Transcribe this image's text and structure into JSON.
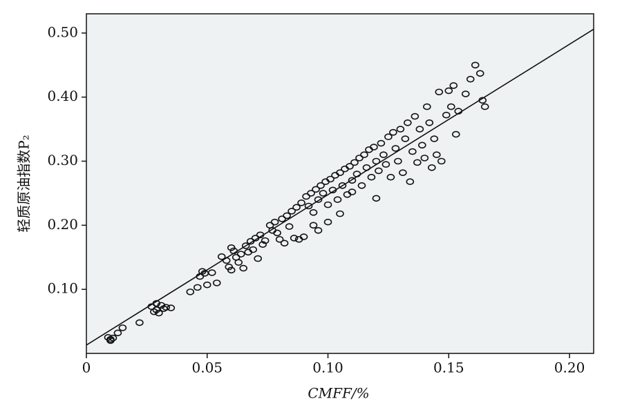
{
  "chart_data": {
    "type": "scatter",
    "x_label": "CMFF/%",
    "y_label": "轻质原油指数P₂",
    "xlim": [
      0,
      0.21
    ],
    "ylim": [
      0,
      0.53
    ],
    "xticks": [
      0,
      0.05,
      {
        "value": 0.1,
        "label": "0.10"
      },
      0.15,
      {
        "value": 0.2,
        "label": "0.20"
      }
    ],
    "yticks": [
      {
        "value": 0.1,
        "label": "0.10"
      },
      {
        "value": 0.2,
        "label": "0.20"
      },
      {
        "value": 0.3,
        "label": "0.30"
      },
      {
        "value": 0.4,
        "label": "0.40"
      },
      {
        "value": 0.5,
        "label": "0.50"
      }
    ],
    "background": "#eef2f2",
    "color": "#111111",
    "fit_line": {
      "x": [
        0,
        0.21
      ],
      "values": [
        0.013,
        0.506
      ]
    },
    "x": [
      0.009,
      0.01,
      0.011,
      0.01,
      0.013,
      0.015,
      0.022,
      0.027,
      0.028,
      0.029,
      0.03,
      0.031,
      0.032,
      0.033,
      0.035,
      0.029,
      0.043,
      0.046,
      0.047,
      0.048,
      0.049,
      0.05,
      0.052,
      0.054,
      0.056,
      0.058,
      0.059,
      0.06,
      0.06,
      0.061,
      0.062,
      0.063,
      0.064,
      0.065,
      0.066,
      0.067,
      0.068,
      0.069,
      0.07,
      0.071,
      0.072,
      0.073,
      0.074,
      0.076,
      0.077,
      0.078,
      0.079,
      0.08,
      0.081,
      0.082,
      0.083,
      0.084,
      0.085,
      0.086,
      0.087,
      0.088,
      0.089,
      0.09,
      0.091,
      0.092,
      0.093,
      0.094,
      0.095,
      0.096,
      0.094,
      0.096,
      0.097,
      0.098,
      0.099,
      0.1,
      0.1,
      0.101,
      0.102,
      0.103,
      0.104,
      0.105,
      0.105,
      0.106,
      0.107,
      0.108,
      0.109,
      0.11,
      0.11,
      0.111,
      0.112,
      0.113,
      0.114,
      0.115,
      0.116,
      0.117,
      0.118,
      0.119,
      0.12,
      0.12,
      0.121,
      0.122,
      0.123,
      0.124,
      0.125,
      0.126,
      0.127,
      0.128,
      0.129,
      0.13,
      0.131,
      0.132,
      0.133,
      0.134,
      0.135,
      0.136,
      0.137,
      0.138,
      0.139,
      0.14,
      0.141,
      0.142,
      0.143,
      0.144,
      0.145,
      0.146,
      0.147,
      0.149,
      0.15,
      0.151,
      0.152,
      0.153,
      0.154,
      0.157,
      0.159,
      0.161,
      0.163,
      0.164,
      0.165
    ],
    "values": [
      0.025,
      0.022,
      0.024,
      0.02,
      0.032,
      0.04,
      0.048,
      0.073,
      0.065,
      0.068,
      0.063,
      0.075,
      0.07,
      0.072,
      0.071,
      0.078,
      0.096,
      0.103,
      0.12,
      0.128,
      0.125,
      0.107,
      0.126,
      0.11,
      0.151,
      0.145,
      0.135,
      0.13,
      0.165,
      0.16,
      0.15,
      0.142,
      0.155,
      0.133,
      0.168,
      0.158,
      0.175,
      0.162,
      0.18,
      0.148,
      0.185,
      0.17,
      0.176,
      0.2,
      0.192,
      0.205,
      0.188,
      0.178,
      0.21,
      0.172,
      0.215,
      0.198,
      0.222,
      0.18,
      0.228,
      0.178,
      0.235,
      0.182,
      0.245,
      0.23,
      0.25,
      0.22,
      0.256,
      0.24,
      0.2,
      0.192,
      0.262,
      0.25,
      0.268,
      0.232,
      0.205,
      0.272,
      0.255,
      0.278,
      0.24,
      0.282,
      0.218,
      0.262,
      0.288,
      0.248,
      0.292,
      0.27,
      0.252,
      0.298,
      0.28,
      0.305,
      0.262,
      0.31,
      0.29,
      0.318,
      0.275,
      0.322,
      0.3,
      0.242,
      0.285,
      0.328,
      0.31,
      0.295,
      0.338,
      0.275,
      0.345,
      0.32,
      0.3,
      0.35,
      0.282,
      0.335,
      0.36,
      0.268,
      0.315,
      0.37,
      0.298,
      0.35,
      0.325,
      0.305,
      0.385,
      0.36,
      0.29,
      0.335,
      0.31,
      0.408,
      0.3,
      0.372,
      0.41,
      0.385,
      0.418,
      0.342,
      0.378,
      0.405,
      0.428,
      0.45,
      0.437,
      0.395,
      0.385
    ]
  }
}
